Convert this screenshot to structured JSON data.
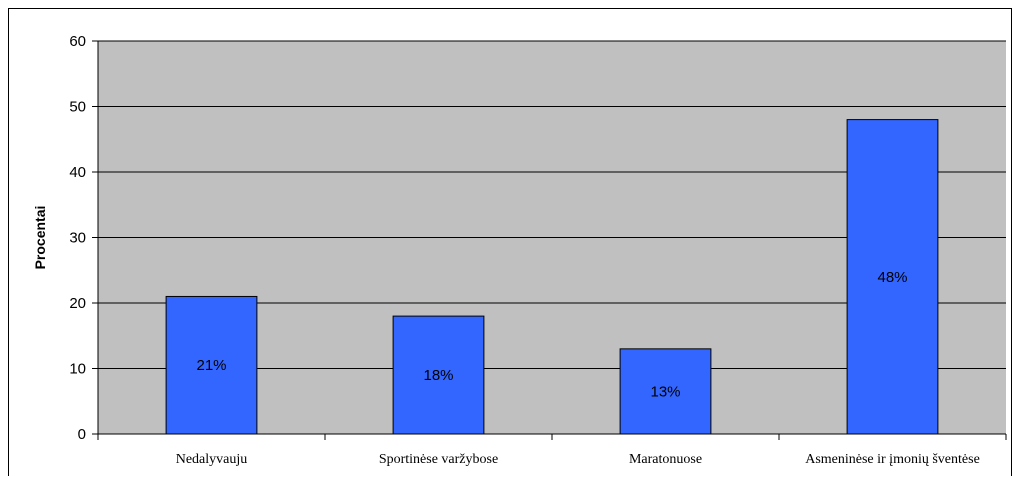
{
  "chart_data": {
    "type": "bar",
    "categories": [
      "Nedalyvauju",
      "Sportinėse varžybose",
      "Maratonuose",
      "Asmeninėse ir įmonių šventėse"
    ],
    "values": [
      21,
      18,
      13,
      48
    ],
    "data_labels": [
      "21%",
      "18%",
      "13%",
      "48%"
    ],
    "ylabel": "Procentai",
    "xlabel": "",
    "ylim": [
      0,
      60
    ],
    "yticks": [
      0,
      10,
      20,
      30,
      40,
      50,
      60
    ],
    "grid": true,
    "legend": "none",
    "colors": {
      "bar": "#3366ff",
      "plot_background": "#c0c0c0",
      "gridline": "#000000"
    }
  }
}
